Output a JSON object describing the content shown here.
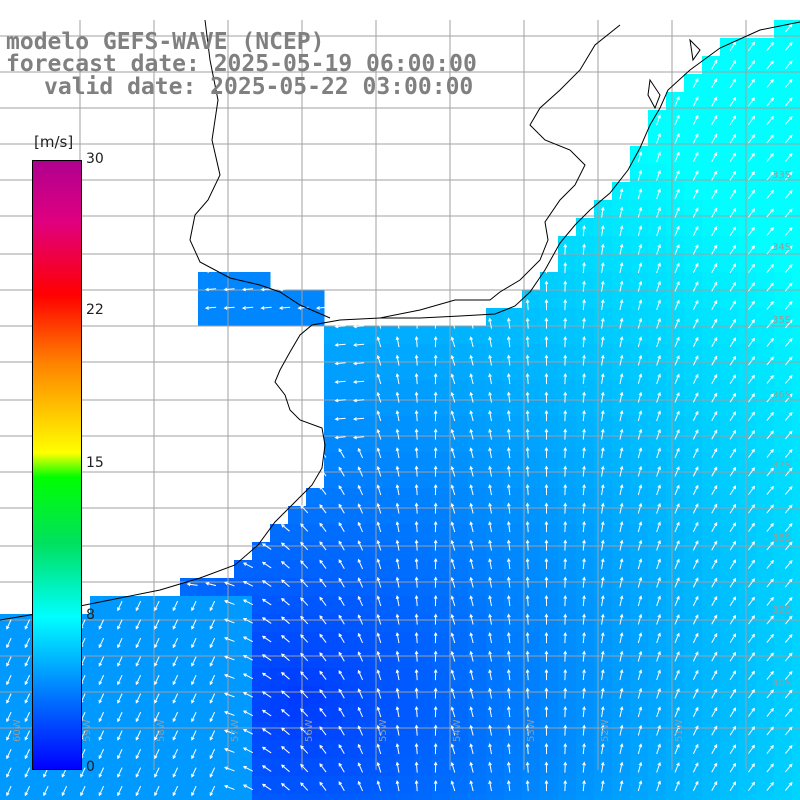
{
  "title": {
    "line1": "modelo GEFS-WAVE (NCEP)",
    "line2": "forecast date: 2025-05-19 06:00:00",
    "line3": "valid date: 2025-05-22 03:00:00"
  },
  "colorbar": {
    "unit": "[m/s]",
    "ticks": [
      "30",
      "22",
      "15",
      "8",
      "0"
    ],
    "min": 0,
    "max": 30
  },
  "grid_labels": {
    "lon": [
      "60W",
      "59W",
      "58W",
      "57W",
      "56W",
      "55W",
      "54W",
      "53W",
      "52W",
      "51W"
    ],
    "lat": [
      "33S",
      "34S",
      "35S",
      "36S",
      "37S",
      "38S",
      "39S",
      "40S"
    ]
  },
  "colors": {
    "land": "#ffffff",
    "coast": "#000000",
    "grid": "#a0a0a0",
    "arrow": "#ffffff",
    "title": "#808080",
    "speed_low": "#0000ff",
    "speed_mid": "#0080ff",
    "speed_8": "#00ffff"
  }
}
